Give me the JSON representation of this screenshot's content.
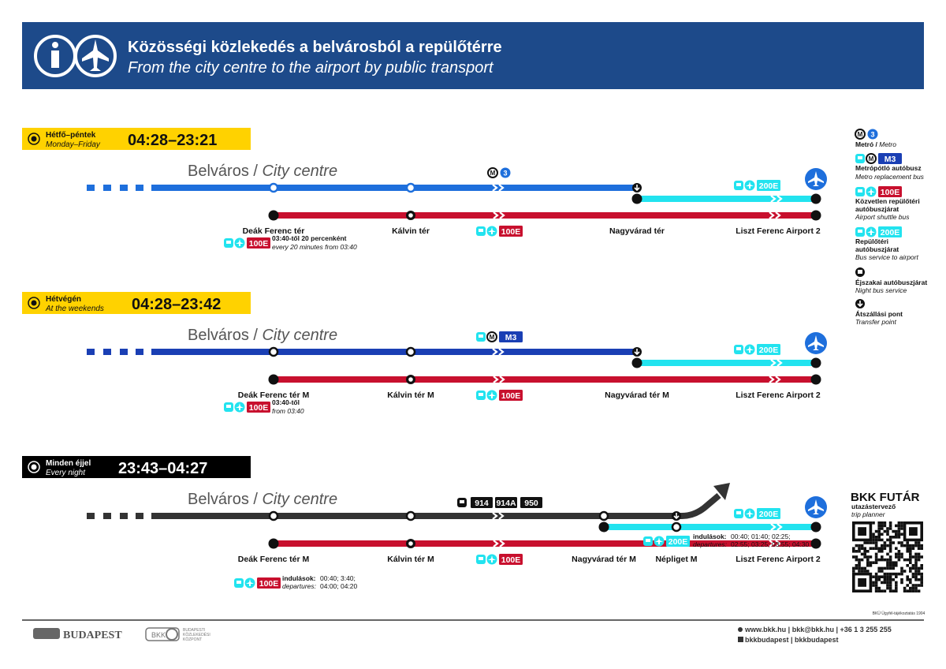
{
  "header": {
    "title_hu": "Közösségi közlekedés a belvárosból a repülőtérre",
    "title_en": "From the city centre to the airport by public transport",
    "icons": [
      "info-icon",
      "airplane-icon"
    ]
  },
  "colors": {
    "header_bg": "#1d4a8a",
    "metro3": "#1e6fdc",
    "m3_replacement": "#1a3fb4",
    "airport_bus_200e": "#22e3ef",
    "airport_shuttle_100e": "#c8102e",
    "night_bus": "#333333",
    "weekday_label": "#ffd200",
    "night_label": "#000000"
  },
  "sections": [
    {
      "day_hu": "Hétfő–péntek",
      "day_en": "Monday–Friday",
      "hours": "04:28–23:21",
      "city_hu": "Belváros / ",
      "city_en": "City centre",
      "line_badge": "3",
      "stations": [
        "Deák Ferenc tér",
        "Kálvin tér",
        "Nagyvárad tér",
        "Liszt Ferenc Airport 2"
      ],
      "shuttle": "100E",
      "connect": "200E",
      "note_hu": "03:40-től 20 percenként",
      "note_en": "every 20 minutes from 03:40"
    },
    {
      "day_hu": "Hétvégén",
      "day_en": "At the weekends",
      "hours": "04:28–23:42",
      "city_hu": "Belváros / ",
      "city_en": "City centre",
      "line_badge": "M3",
      "stations": [
        "Deák Ferenc tér M",
        "Kálvin tér M",
        "Nagyvárad tér M",
        "Liszt Ferenc Airport 2"
      ],
      "shuttle": "100E",
      "connect": "200E",
      "note_hu": "03:40-től",
      "note_en": "from 03:40"
    },
    {
      "day_hu": "Minden éjjel",
      "day_en": "Every night",
      "hours": "23:43–04:27",
      "city_hu": "Belváros / ",
      "city_en": "City centre",
      "night_lines": [
        "914",
        "914A",
        "950"
      ],
      "stations": [
        "Deák Ferenc tér M",
        "Kálvin tér M",
        "Nagyvárad tér M",
        "Népliget M",
        "Liszt Ferenc Airport 2"
      ],
      "shuttle": "100E",
      "connect": "200E",
      "dep_label_hu": "indulások:",
      "dep_label_en": "departures:",
      "shuttle_dep_1": "00:40; 3:40;",
      "shuttle_dep_2": "04:00; 04:20",
      "connect_dep_1": "00:40; 01:40; 02:25;",
      "connect_dep_2": "02:55; 03:25; 03:55; 04:30"
    }
  ],
  "legend": [
    {
      "badge": "3",
      "hu": "Metró / ",
      "en": "Metro"
    },
    {
      "badge": "M3",
      "hu": "Metrópótló autóbusz",
      "en": "Metro replacement bus"
    },
    {
      "badge": "100E",
      "hu": "Közvetlen repülőtéri",
      "hu2": "autóbuszjárat",
      "en": "Airport shuttle bus"
    },
    {
      "badge": "200E",
      "hu": "Repülőtéri",
      "hu2": "autóbuszjárat",
      "en": "Bus service to airport"
    },
    {
      "hu": "Éjszakai autóbuszjárat",
      "en": "Night bus service"
    },
    {
      "hu": "Átszállási pont",
      "en": "Transfer point"
    }
  ],
  "futar": {
    "title": "BKK FUTÁR",
    "hu": "utazástervező",
    "en": "trip planner"
  },
  "footer": {
    "credit": "BKÜ Ügyfél-tájékoztatás 1904",
    "city_logo": "BUDAPEST",
    "bkk_logo": "BKK",
    "bkk_logo_text": [
      "BUDAPESTI",
      "KÖZLEKEDÉSI",
      "KÖZPONT"
    ],
    "contact": "www.bkk.hu | bkk@bkk.hu | +36 1 3 255 255",
    "social": "bkkbudapest | bkkbudapest"
  }
}
